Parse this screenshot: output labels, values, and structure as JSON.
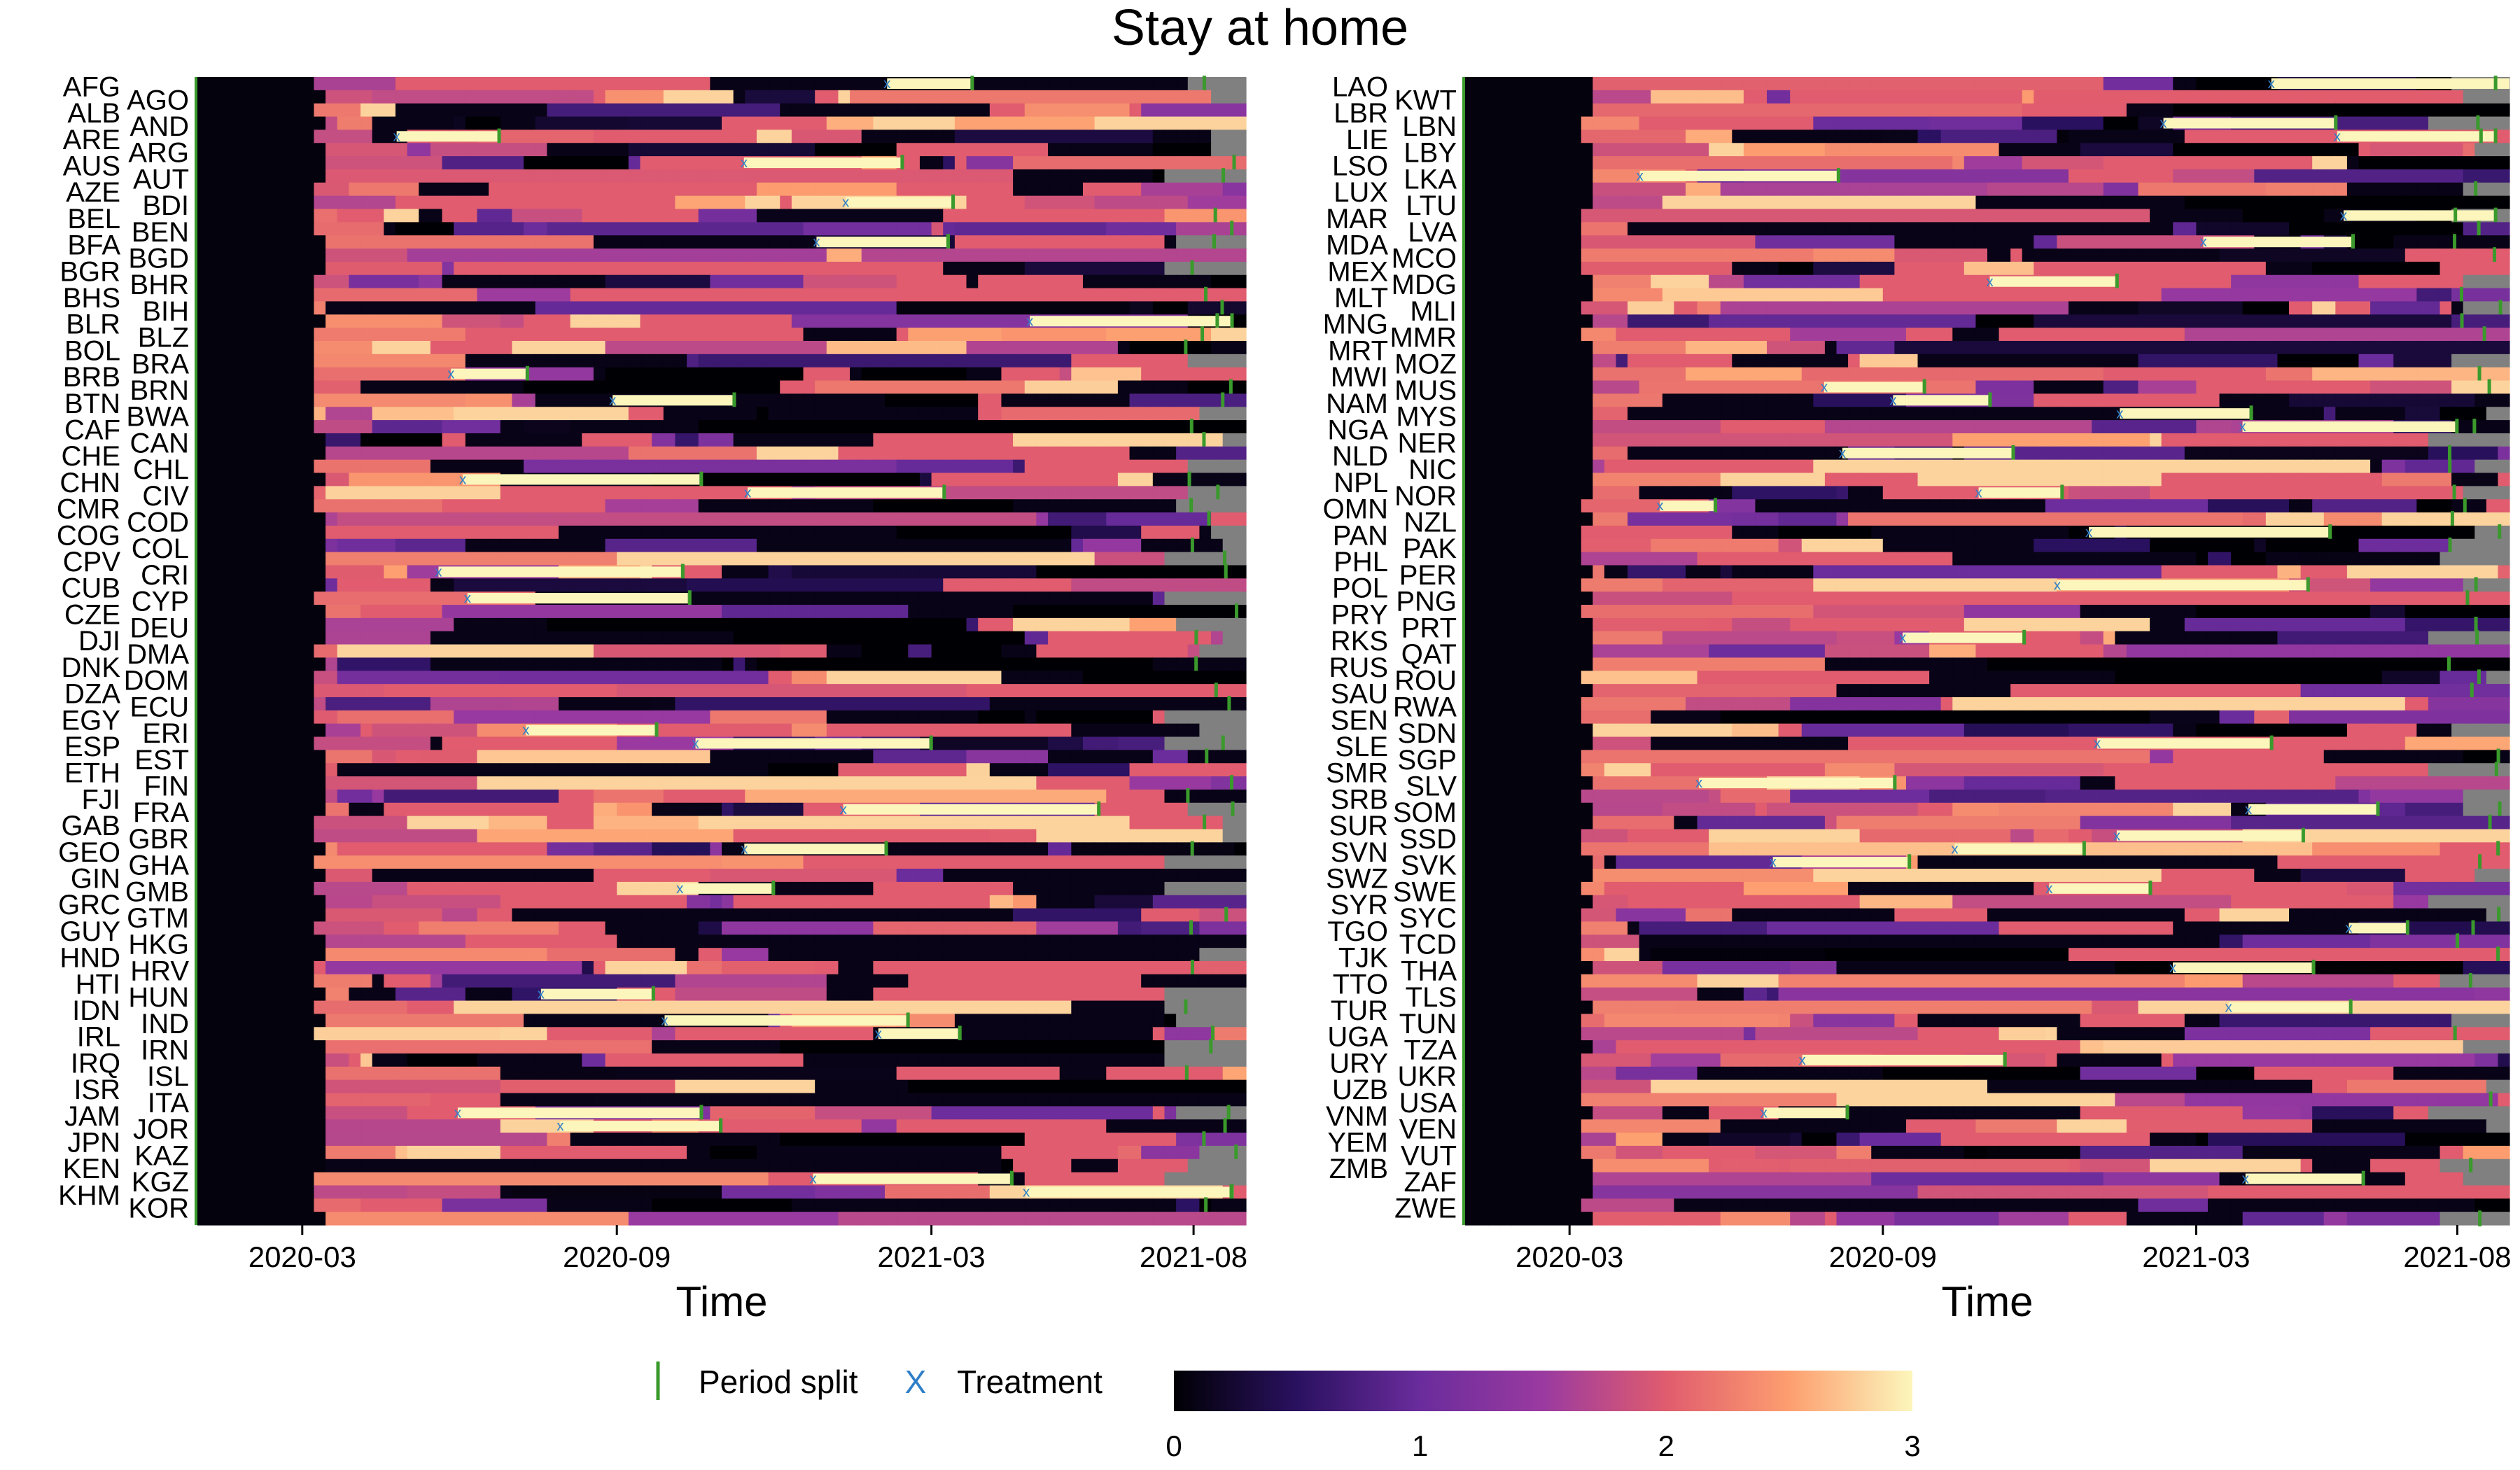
{
  "title": "Stay at home",
  "colors": {
    "nodata": "#808080",
    "split": "#3a9a2c",
    "treatment": "#2f7fc8",
    "scale": [
      "#000004",
      "#2a1160",
      "#6a2c9c",
      "#9a3aa0",
      "#e05c6e",
      "#fd9e6f",
      "#fcf6bc"
    ]
  },
  "legend": {
    "split_label": "Period split",
    "treatment_symbol": "X",
    "treatment_label": "Treatment",
    "colorbar_ticks": [
      "0",
      "1",
      "2",
      "3"
    ],
    "colorbar_range": [
      0,
      3
    ]
  },
  "chart_data": [
    {
      "type": "heatmap",
      "xlabel": "Time",
      "x_ticks": [
        "2020-03",
        "2020-09",
        "2021-03",
        "2021-08"
      ],
      "x_range": [
        "2020-01",
        "2021-09"
      ],
      "value_range": [
        0,
        3
      ],
      "rows_left_labels": [
        "AFG",
        "ALB",
        "ARE",
        "AUS",
        "AZE",
        "BEL",
        "BFA",
        "BGR",
        "BHS",
        "BLR",
        "BOL",
        "BRB",
        "BTN",
        "CAF",
        "CHE",
        "CHN",
        "CMR",
        "COG",
        "CPV",
        "CUB",
        "CZE",
        "DJI",
        "DNK",
        "DZA",
        "EGY",
        "ESP",
        "ETH",
        "FJI",
        "GAB",
        "GEO",
        "GIN",
        "GRC",
        "GUY",
        "HND",
        "HTI",
        "IDN",
        "IRL",
        "IRQ",
        "ISR",
        "JAM",
        "JPN",
        "KEN",
        "KHM"
      ],
      "rows_right_labels": [
        "AGO",
        "AND",
        "ARG",
        "AUT",
        "BDI",
        "BEN",
        "BGD",
        "BHR",
        "BIH",
        "BLZ",
        "BRA",
        "BRN",
        "BWA",
        "CAN",
        "CHL",
        "CIV",
        "COD",
        "COL",
        "CRI",
        "CYP",
        "DEU",
        "DMA",
        "DOM",
        "ECU",
        "ERI",
        "EST",
        "FIN",
        "FRA",
        "GBR",
        "GHA",
        "GMB",
        "GTM",
        "HKG",
        "HRV",
        "HUN",
        "IND",
        "IRN",
        "ISL",
        "ITA",
        "JOR",
        "KAZ",
        "KGZ",
        "KOR"
      ]
    },
    {
      "type": "heatmap",
      "xlabel": "Time",
      "x_ticks": [
        "2020-03",
        "2020-09",
        "2021-03",
        "2021-08"
      ],
      "x_range": [
        "2020-01",
        "2021-09"
      ],
      "value_range": [
        0,
        3
      ],
      "rows_left_labels": [
        "LAO",
        "LBR",
        "LIE",
        "LSO",
        "LUX",
        "MAR",
        "MDA",
        "MEX",
        "MLT",
        "MNG",
        "MRT",
        "MWI",
        "NAM",
        "NGA",
        "NLD",
        "NPL",
        "OMN",
        "PAN",
        "PHL",
        "POL",
        "PRY",
        "RKS",
        "RUS",
        "SAU",
        "SEN",
        "SLE",
        "SMR",
        "SRB",
        "SUR",
        "SVN",
        "SWZ",
        "SYR",
        "TGO",
        "TJK",
        "TTO",
        "TUR",
        "UGA",
        "URY",
        "UZB",
        "VNM",
        "YEM",
        "ZMB"
      ],
      "rows_right_labels": [
        "KWT",
        "LBN",
        "LBY",
        "LKA",
        "LTU",
        "LVA",
        "MCO",
        "MDG",
        "MLI",
        "MMR",
        "MOZ",
        "MUS",
        "MYS",
        "NER",
        "NIC",
        "NOR",
        "NZL",
        "PAK",
        "PER",
        "PNG",
        "PRT",
        "QAT",
        "ROU",
        "RWA",
        "SDN",
        "SGP",
        "SLV",
        "SOM",
        "SSD",
        "SVK",
        "SWE",
        "SYC",
        "TCD",
        "THA",
        "TLS",
        "TUN",
        "TZA",
        "UKR",
        "USA",
        "VEN",
        "VUT",
        "ZAF",
        "ZWE"
      ]
    }
  ]
}
